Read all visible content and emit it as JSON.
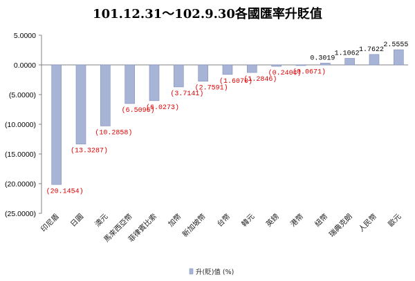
{
  "chart_data": {
    "type": "bar",
    "title": "101.12.31～102.9.30各國匯率升貶值",
    "categories": [
      "印尼盾",
      "日圓",
      "澳元",
      "馬來西亞幣",
      "菲律賓比索",
      "加幣",
      "新加坡幣",
      "台幣",
      "韓元",
      "英鎊",
      "港幣",
      "紐幣",
      "瑞典克朗",
      "人民幣",
      "歐元"
    ],
    "series": [
      {
        "name": "升(貶)值 (%)",
        "values": [
          -20.1454,
          -13.3287,
          -10.2858,
          -6.5096,
          -6.0273,
          -3.7141,
          -2.7591,
          -1.607,
          -1.2846,
          -0.2404,
          -0.0671,
          0.3019,
          1.1062,
          1.7622,
          2.5555
        ]
      }
    ],
    "data_labels": [
      "(20.1454)",
      "(13.3287)",
      "(10.2858)",
      "(6.5096)",
      "(6.0273)",
      "(3.7141)",
      "(2.7591)",
      "(1.6070)",
      "(1.2846)",
      "(0.2404)",
      "(0.0671)",
      "0.3019",
      "1.1062",
      "1.7622",
      "2.5555"
    ],
    "y_ticks": [
      5,
      0,
      -5,
      -10,
      -15,
      -20,
      -25
    ],
    "y_tick_labels": [
      "5.0000",
      "0.0000",
      "(5.0000)",
      "(10.0000)",
      "(15.0000)",
      "(20.0000)",
      "(25.0000)"
    ],
    "ylim": [
      -25,
      5
    ],
    "grid": false,
    "legend_position": "bottom",
    "colors": {
      "bar": "#a7b4d6",
      "bar_edge": "#7f8fbd",
      "negative_label": "#e00000",
      "positive_label": "#000000",
      "axis": "#808080"
    }
  }
}
